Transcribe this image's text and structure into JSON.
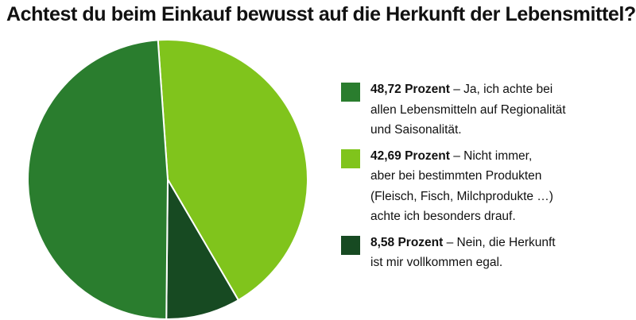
{
  "chart_data": {
    "type": "pie",
    "title": "Achtest du beim Einkauf bewusst auf die Herkunft der Lebensmittel?",
    "slices": [
      {
        "value": 48.72,
        "color": "#2a7d2e",
        "bold": "48,72 Prozent",
        "text": [
          " – Ja, ich achte bei",
          "allen Lebensmitteln auf Regionalität",
          "und Saisonalität."
        ]
      },
      {
        "value": 42.69,
        "color": "#80c41c",
        "bold": "42,69 Prozent",
        "text": [
          " – Nicht immer,",
          "aber bei bestimmten Produkten",
          "(Fleisch, Fisch, Milchprodukte …)",
          "achte ich besonders drauf."
        ]
      },
      {
        "value": 8.58,
        "color": "#174a22",
        "bold": "8,58 Prozent",
        "text": [
          " – Nein, die Herkunft",
          "ist mir vollkommen egal."
        ]
      }
    ],
    "legend_position": "right"
  }
}
